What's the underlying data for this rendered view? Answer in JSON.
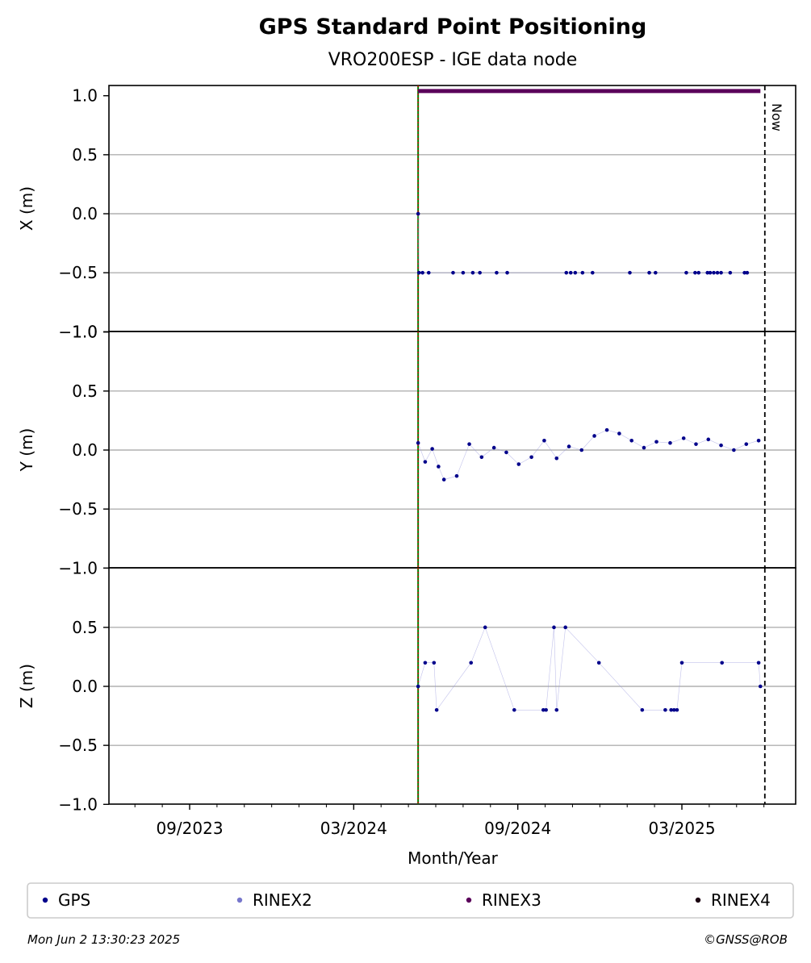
{
  "chart_data": {
    "type": "scatter",
    "title": "GPS Standard Point Positioning",
    "subtitle": "VRO200ESP - IGE data node",
    "xlabel": "Month/Year",
    "x_ticks": [
      "09/2023",
      "03/2024",
      "09/2024",
      "03/2025"
    ],
    "x_range": [
      "2023-06-10",
      "2025-06-22"
    ],
    "start_marker": "2024-05-12",
    "now_marker": "2025-06-02",
    "now_label": "Now",
    "grid": true,
    "legend_position": "bottom",
    "panels": [
      {
        "ylabel": "X (m)",
        "ylim": [
          -1.0,
          1.0
        ],
        "y_ticks": [
          "1.0",
          "0.5",
          "0.0",
          "−0.5",
          "−1.0"
        ],
        "series": [
          {
            "name": "GPS",
            "color": "#00008b",
            "values": [
              {
                "x": "2024-05-12",
                "y": 0.0
              },
              {
                "x": "2024-05-13",
                "y": -0.5
              },
              {
                "x": "2024-05-17",
                "y": -0.5
              },
              {
                "x": "2024-05-24",
                "y": -0.5
              },
              {
                "x": "2024-06-20",
                "y": -0.5
              },
              {
                "x": "2024-07-01",
                "y": -0.5
              },
              {
                "x": "2024-07-12",
                "y": -0.5
              },
              {
                "x": "2024-07-20",
                "y": -0.5
              },
              {
                "x": "2024-08-08",
                "y": -0.5
              },
              {
                "x": "2024-08-20",
                "y": -0.5
              },
              {
                "x": "2024-10-25",
                "y": -0.5
              },
              {
                "x": "2024-10-30",
                "y": -0.5
              },
              {
                "x": "2024-11-04",
                "y": -0.5
              },
              {
                "x": "2024-11-12",
                "y": -0.5
              },
              {
                "x": "2024-11-23",
                "y": -0.5
              },
              {
                "x": "2025-01-04",
                "y": -0.5
              },
              {
                "x": "2025-01-26",
                "y": -0.5
              },
              {
                "x": "2025-02-02",
                "y": -0.5
              },
              {
                "x": "2025-03-06",
                "y": -0.5
              },
              {
                "x": "2025-03-16",
                "y": -0.5
              },
              {
                "x": "2025-03-20",
                "y": -0.5
              },
              {
                "x": "2025-03-30",
                "y": -0.5
              },
              {
                "x": "2025-04-02",
                "y": -0.5
              },
              {
                "x": "2025-04-06",
                "y": -0.5
              },
              {
                "x": "2025-04-10",
                "y": -0.5
              },
              {
                "x": "2025-04-14",
                "y": -0.5
              },
              {
                "x": "2025-04-24",
                "y": -0.5
              },
              {
                "x": "2025-05-10",
                "y": -0.5
              },
              {
                "x": "2025-05-13",
                "y": -0.5
              }
            ]
          },
          {
            "name": "RINEX3",
            "color": "#5a005a",
            "values": [
              {
                "x": "2024-05-12",
                "y": 1.04
              },
              {
                "x": "2025-05-28",
                "y": 1.04
              }
            ]
          }
        ]
      },
      {
        "ylabel": "Y (m)",
        "ylim": [
          -1.0,
          1.0
        ],
        "y_ticks": [
          "1.0",
          "0.5",
          "0.0",
          "−0.5",
          "−1.0"
        ],
        "series": [
          {
            "name": "GPS",
            "color": "#00008b",
            "values": [
              {
                "x": "2024-05-12",
                "y": 0.06
              },
              {
                "x": "2024-05-20",
                "y": -0.1
              },
              {
                "x": "2024-05-28",
                "y": 0.01
              },
              {
                "x": "2024-06-04",
                "y": -0.14
              },
              {
                "x": "2024-06-10",
                "y": -0.25
              },
              {
                "x": "2024-06-24",
                "y": -0.22
              },
              {
                "x": "2024-07-08",
                "y": 0.05
              },
              {
                "x": "2024-07-22",
                "y": -0.06
              },
              {
                "x": "2024-08-05",
                "y": 0.02
              },
              {
                "x": "2024-08-19",
                "y": -0.02
              },
              {
                "x": "2024-09-02",
                "y": -0.12
              },
              {
                "x": "2024-09-16",
                "y": -0.06
              },
              {
                "x": "2024-09-30",
                "y": 0.08
              },
              {
                "x": "2024-10-14",
                "y": -0.07
              },
              {
                "x": "2024-10-28",
                "y": 0.03
              },
              {
                "x": "2024-11-11",
                "y": 0.0
              },
              {
                "x": "2024-11-25",
                "y": 0.12
              },
              {
                "x": "2024-12-09",
                "y": 0.17
              },
              {
                "x": "2024-12-23",
                "y": 0.14
              },
              {
                "x": "2025-01-06",
                "y": 0.08
              },
              {
                "x": "2025-01-20",
                "y": 0.02
              },
              {
                "x": "2025-02-03",
                "y": 0.07
              },
              {
                "x": "2025-02-17",
                "y": 0.06
              },
              {
                "x": "2025-03-03",
                "y": 0.1
              },
              {
                "x": "2025-03-17",
                "y": 0.05
              },
              {
                "x": "2025-03-31",
                "y": 0.09
              },
              {
                "x": "2025-04-14",
                "y": 0.04
              },
              {
                "x": "2025-04-28",
                "y": 0.0
              },
              {
                "x": "2025-05-12",
                "y": 0.05
              },
              {
                "x": "2025-05-26",
                "y": 0.08
              }
            ]
          }
        ]
      },
      {
        "ylabel": "Z (m)",
        "ylim": [
          -1.0,
          1.0
        ],
        "y_ticks": [
          "0.5",
          "0.0",
          "−0.5",
          "−1.0"
        ],
        "series": [
          {
            "name": "GPS",
            "color": "#00008b",
            "values": [
              {
                "x": "2024-05-12",
                "y": 0.0
              },
              {
                "x": "2024-05-20",
                "y": 0.2
              },
              {
                "x": "2024-05-30",
                "y": 0.2
              },
              {
                "x": "2024-06-02",
                "y": -0.2
              },
              {
                "x": "2024-07-10",
                "y": 0.2
              },
              {
                "x": "2024-07-26",
                "y": 0.5
              },
              {
                "x": "2024-08-28",
                "y": -0.2
              },
              {
                "x": "2024-09-29",
                "y": -0.2
              },
              {
                "x": "2024-10-02",
                "y": -0.2
              },
              {
                "x": "2024-10-11",
                "y": 0.5
              },
              {
                "x": "2024-10-14",
                "y": -0.2
              },
              {
                "x": "2024-10-24",
                "y": 0.5
              },
              {
                "x": "2024-11-30",
                "y": 0.2
              },
              {
                "x": "2025-01-18",
                "y": -0.2
              },
              {
                "x": "2025-02-12",
                "y": -0.2
              },
              {
                "x": "2025-02-18",
                "y": -0.2
              },
              {
                "x": "2025-02-21",
                "y": -0.2
              },
              {
                "x": "2025-02-24",
                "y": -0.2
              },
              {
                "x": "2025-03-01",
                "y": 0.2
              },
              {
                "x": "2025-04-15",
                "y": 0.2
              },
              {
                "x": "2025-05-26",
                "y": 0.2
              },
              {
                "x": "2025-05-28",
                "y": 0.0
              }
            ]
          }
        ]
      }
    ],
    "legend": [
      {
        "name": "GPS",
        "color": "#00008b"
      },
      {
        "name": "RINEX2",
        "color": "#7777cc"
      },
      {
        "name": "RINEX3",
        "color": "#5a005a"
      },
      {
        "name": "RINEX4",
        "color": "#1a0010"
      }
    ]
  },
  "footer": {
    "timestamp": "Mon Jun  2 13:30:23 2025",
    "copyright": "©GNSS@ROB"
  }
}
